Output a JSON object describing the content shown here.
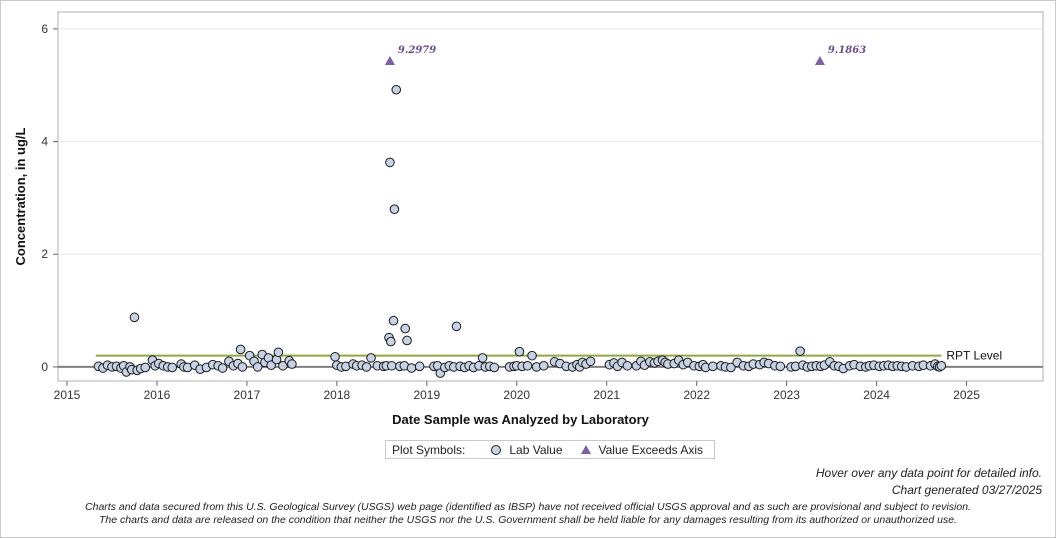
{
  "chart_data": {
    "type": "scatter",
    "xlabel": "Date Sample was Analyzed by Laboratory",
    "ylabel": "Concentration, in ug/L",
    "xlim": [
      2014.9,
      2025.85
    ],
    "ylim": [
      -0.25,
      6.3
    ],
    "x_ticks": [
      "2015",
      "2016",
      "2017",
      "2018",
      "2019",
      "2020",
      "2021",
      "2022",
      "2023",
      "2024",
      "2025"
    ],
    "y_ticks": [
      "0",
      "2",
      "4",
      "6"
    ],
    "grid": "horizontal",
    "reference_line": {
      "label": "RPT Level",
      "value": 0.2,
      "x_start": 2015.32,
      "x_end": 2024.72,
      "color": "#8faa3c"
    },
    "series": [
      {
        "name": "Lab Value",
        "marker": "circle",
        "color": "#c6d3e6",
        "points": [
          [
            2015.35,
            0.01
          ],
          [
            2015.4,
            -0.02
          ],
          [
            2015.45,
            0.03
          ],
          [
            2015.5,
            0.0
          ],
          [
            2015.55,
            0.01
          ],
          [
            2015.6,
            -0.02
          ],
          [
            2015.63,
            0.02
          ],
          [
            2015.66,
            -0.09
          ],
          [
            2015.7,
            0.0
          ],
          [
            2015.72,
            -0.05
          ],
          [
            2015.75,
            0.88
          ],
          [
            2015.78,
            -0.06
          ],
          [
            2015.82,
            -0.03
          ],
          [
            2015.87,
            -0.01
          ],
          [
            2015.95,
            0.12
          ],
          [
            2015.98,
            0.02
          ],
          [
            2016.02,
            0.06
          ],
          [
            2016.07,
            0.02
          ],
          [
            2016.12,
            0.0
          ],
          [
            2016.17,
            -0.01
          ],
          [
            2016.27,
            0.05
          ],
          [
            2016.3,
            0.0
          ],
          [
            2016.34,
            -0.01
          ],
          [
            2016.42,
            0.03
          ],
          [
            2016.48,
            -0.04
          ],
          [
            2016.55,
            -0.01
          ],
          [
            2016.62,
            0.04
          ],
          [
            2016.68,
            0.02
          ],
          [
            2016.73,
            -0.02
          ],
          [
            2016.8,
            0.1
          ],
          [
            2016.85,
            0.02
          ],
          [
            2016.9,
            0.06
          ],
          [
            2016.93,
            0.31
          ],
          [
            2016.95,
            0.0
          ],
          [
            2017.03,
            0.2
          ],
          [
            2017.08,
            0.1
          ],
          [
            2017.12,
            0.0
          ],
          [
            2017.17,
            0.22
          ],
          [
            2017.2,
            0.08
          ],
          [
            2017.24,
            0.16
          ],
          [
            2017.27,
            0.03
          ],
          [
            2017.33,
            0.13
          ],
          [
            2017.35,
            0.26
          ],
          [
            2017.4,
            0.02
          ],
          [
            2017.47,
            0.11
          ],
          [
            2017.5,
            0.05
          ],
          [
            2017.98,
            0.18
          ],
          [
            2018.0,
            0.03
          ],
          [
            2018.05,
            0.0
          ],
          [
            2018.1,
            0.01
          ],
          [
            2018.18,
            0.05
          ],
          [
            2018.22,
            0.02
          ],
          [
            2018.28,
            0.03
          ],
          [
            2018.33,
            0.0
          ],
          [
            2018.38,
            0.16
          ],
          [
            2018.45,
            0.02
          ],
          [
            2018.52,
            0.01
          ],
          [
            2018.55,
            0.02
          ],
          [
            2018.58,
            0.52
          ],
          [
            2018.59,
            3.63
          ],
          [
            2018.6,
            0.45
          ],
          [
            2018.61,
            0.02
          ],
          [
            2018.63,
            0.82
          ],
          [
            2018.64,
            2.8
          ],
          [
            2018.66,
            4.92
          ],
          [
            2018.7,
            0.01
          ],
          [
            2018.75,
            0.02
          ],
          [
            2018.76,
            0.68
          ],
          [
            2018.78,
            0.47
          ],
          [
            2018.83,
            -0.02
          ],
          [
            2018.92,
            0.01
          ],
          [
            2019.08,
            0.01
          ],
          [
            2019.12,
            0.02
          ],
          [
            2019.15,
            -0.11
          ],
          [
            2019.2,
            -0.01
          ],
          [
            2019.25,
            0.02
          ],
          [
            2019.3,
            0.0
          ],
          [
            2019.33,
            0.72
          ],
          [
            2019.37,
            0.01
          ],
          [
            2019.42,
            -0.01
          ],
          [
            2019.47,
            0.02
          ],
          [
            2019.52,
            -0.01
          ],
          [
            2019.58,
            0.02
          ],
          [
            2019.62,
            0.16
          ],
          [
            2019.65,
            0.0
          ],
          [
            2019.7,
            0.01
          ],
          [
            2019.75,
            -0.01
          ],
          [
            2019.92,
            0.0
          ],
          [
            2019.97,
            0.01
          ],
          [
            2020.0,
            0.02
          ],
          [
            2020.03,
            0.27
          ],
          [
            2020.06,
            0.01
          ],
          [
            2020.12,
            0.02
          ],
          [
            2020.17,
            0.2
          ],
          [
            2020.22,
            0.0
          ],
          [
            2020.3,
            0.02
          ],
          [
            2020.42,
            0.09
          ],
          [
            2020.48,
            0.06
          ],
          [
            2020.55,
            0.01
          ],
          [
            2020.62,
            0.0
          ],
          [
            2020.67,
            0.04
          ],
          [
            2020.7,
            0.0
          ],
          [
            2020.73,
            0.08
          ],
          [
            2020.77,
            0.05
          ],
          [
            2020.82,
            0.1
          ],
          [
            2021.03,
            0.04
          ],
          [
            2021.08,
            0.07
          ],
          [
            2021.12,
            0.01
          ],
          [
            2021.17,
            0.08
          ],
          [
            2021.23,
            0.02
          ],
          [
            2021.33,
            0.02
          ],
          [
            2021.38,
            0.1
          ],
          [
            2021.42,
            0.03
          ],
          [
            2021.48,
            0.09
          ],
          [
            2021.53,
            0.07
          ],
          [
            2021.57,
            0.1
          ],
          [
            2021.62,
            0.12
          ],
          [
            2021.65,
            0.08
          ],
          [
            2021.68,
            0.05
          ],
          [
            2021.75,
            0.06
          ],
          [
            2021.8,
            0.12
          ],
          [
            2021.85,
            0.04
          ],
          [
            2021.9,
            0.08
          ],
          [
            2021.97,
            0.02
          ],
          [
            2022.03,
            0.01
          ],
          [
            2022.07,
            0.04
          ],
          [
            2022.1,
            -0.01
          ],
          [
            2022.18,
            0.01
          ],
          [
            2022.27,
            0.02
          ],
          [
            2022.32,
            0.0
          ],
          [
            2022.38,
            -0.01
          ],
          [
            2022.45,
            0.08
          ],
          [
            2022.52,
            0.02
          ],
          [
            2022.58,
            0.01
          ],
          [
            2022.63,
            0.05
          ],
          [
            2022.7,
            0.04
          ],
          [
            2022.75,
            0.08
          ],
          [
            2022.8,
            0.06
          ],
          [
            2022.87,
            0.02
          ],
          [
            2022.93,
            0.01
          ],
          [
            2023.05,
            0.0
          ],
          [
            2023.1,
            0.01
          ],
          [
            2023.15,
            0.28
          ],
          [
            2023.18,
            0.03
          ],
          [
            2023.23,
            0.0
          ],
          [
            2023.28,
            0.01
          ],
          [
            2023.33,
            0.02
          ],
          [
            2023.38,
            0.01
          ],
          [
            2023.42,
            0.03
          ],
          [
            2023.48,
            0.09
          ],
          [
            2023.53,
            0.02
          ],
          [
            2023.58,
            0.01
          ],
          [
            2023.63,
            -0.03
          ],
          [
            2023.7,
            0.02
          ],
          [
            2023.75,
            0.04
          ],
          [
            2023.82,
            0.01
          ],
          [
            2023.88,
            0.0
          ],
          [
            2023.92,
            0.02
          ],
          [
            2023.97,
            0.03
          ],
          [
            2024.03,
            0.01
          ],
          [
            2024.08,
            0.02
          ],
          [
            2024.13,
            0.03
          ],
          [
            2024.18,
            0.01
          ],
          [
            2024.23,
            0.02
          ],
          [
            2024.28,
            0.01
          ],
          [
            2024.33,
            0.0
          ],
          [
            2024.4,
            0.02
          ],
          [
            2024.47,
            0.01
          ],
          [
            2024.52,
            0.03
          ],
          [
            2024.6,
            0.02
          ],
          [
            2024.65,
            0.05
          ],
          [
            2024.68,
            0.01
          ],
          [
            2024.7,
            0.0
          ],
          [
            2024.72,
            0.02
          ]
        ]
      },
      {
        "name": "Value Exceeds Axis",
        "marker": "triangle",
        "color": "#7b5fa8",
        "points": [
          {
            "x": 2018.59,
            "label": "9.2979"
          },
          {
            "x": 2023.37,
            "label": "9.1863"
          }
        ]
      }
    ]
  },
  "legend": {
    "title": "Plot Symbols:",
    "items": [
      {
        "label": "Lab Value",
        "symbol": "circle-icon"
      },
      {
        "label": "Value Exceeds Axis",
        "symbol": "triangle-icon"
      }
    ]
  },
  "notes": {
    "hover": "Hover over any data point for detailed info.",
    "generated": "Chart generated 03/27/2025",
    "disclaimer_1": "Charts and data secured from this U.S. Geological Survey (USGS) web page (identified as IBSP) have not received official USGS approval and as such are provisional and subject to revision.",
    "disclaimer_2": "The charts and data are released on the condition that neither the USGS nor the U.S. Government shall be held liable for any damages resulting from its authorized or unauthorized use."
  }
}
